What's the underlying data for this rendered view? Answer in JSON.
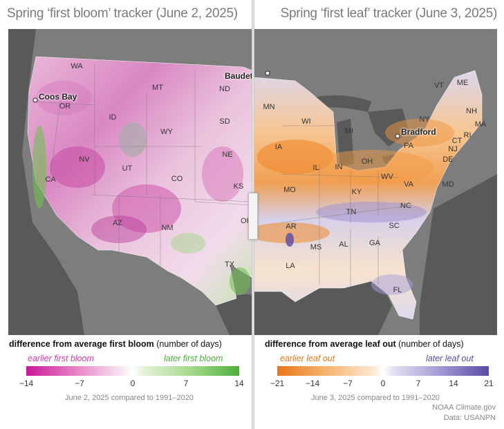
{
  "left_panel": {
    "title": "Spring ‘first bloom’ tracker (June 2, 2025)",
    "legend_heading_bold": "difference from average first bloom",
    "legend_heading_rest": " (number of days)",
    "legend_low_label": "earlier first bloom",
    "legend_high_label": "later first bloom",
    "legend_low_color": "#d63aa6",
    "legend_high_color": "#4caf3a",
    "ticks": [
      "−14",
      "−7",
      "0",
      "7",
      "14"
    ],
    "tick_values": [
      -14,
      -7,
      0,
      7,
      14
    ],
    "compared_text": "June 2, 2025 compared to 1991–2020",
    "states": {
      "WA": "WA",
      "OR": "OR",
      "CA": "CA",
      "ID": "ID",
      "NV": "NV",
      "MT": "MT",
      "WY": "WY",
      "UT": "UT",
      "AZ": "AZ",
      "CO": "CO",
      "NM": "NM",
      "ND": "ND",
      "SD": "SD",
      "NE": "NE",
      "KS": "KS",
      "OK": "OK",
      "TX": "TX"
    },
    "cities": {
      "coos_bay": "Coos Bay",
      "baudette": "Baudette"
    }
  },
  "right_panel": {
    "title": "Spring ‘first leaf’ tracker (June 3, 2025)",
    "legend_heading_bold": "difference from average leaf out",
    "legend_heading_rest": " (number of days)",
    "legend_low_label": "earlier leaf out",
    "legend_high_label": "later leaf out",
    "legend_low_color": "#e8761a",
    "legend_high_color": "#5b4aa6",
    "ticks": [
      "−21",
      "−14",
      "−7",
      "0",
      "7",
      "14",
      "21"
    ],
    "tick_values": [
      -21,
      -14,
      -7,
      0,
      7,
      14,
      21
    ],
    "compared_text": "June 3, 2025 compared to 1991–2020",
    "states": {
      "MN": "MN",
      "WI": "WI",
      "MI": "MI",
      "IA": "IA",
      "IL": "IL",
      "IN": "IN",
      "OH": "OH",
      "PA": "PA",
      "NY": "NY",
      "VT": "VT",
      "ME": "ME",
      "NH": "NH",
      "MA": "MA",
      "RI": "RI",
      "CT": "CT",
      "NJ": "NJ",
      "DE": "DE",
      "MD": "MD",
      "WV": "WV",
      "VA": "VA",
      "KY": "KY",
      "MO": "MO",
      "TN": "TN",
      "NC": "NC",
      "SC": "SC",
      "AR": "AR",
      "MS": "MS",
      "AL": "AL",
      "GA": "GA",
      "LA": "LA",
      "FL": "FL"
    },
    "cities": {
      "bradford": "Bradford"
    }
  },
  "credits": {
    "line1": "NOAA Climate.gov",
    "line2": "Data: USANPN"
  }
}
